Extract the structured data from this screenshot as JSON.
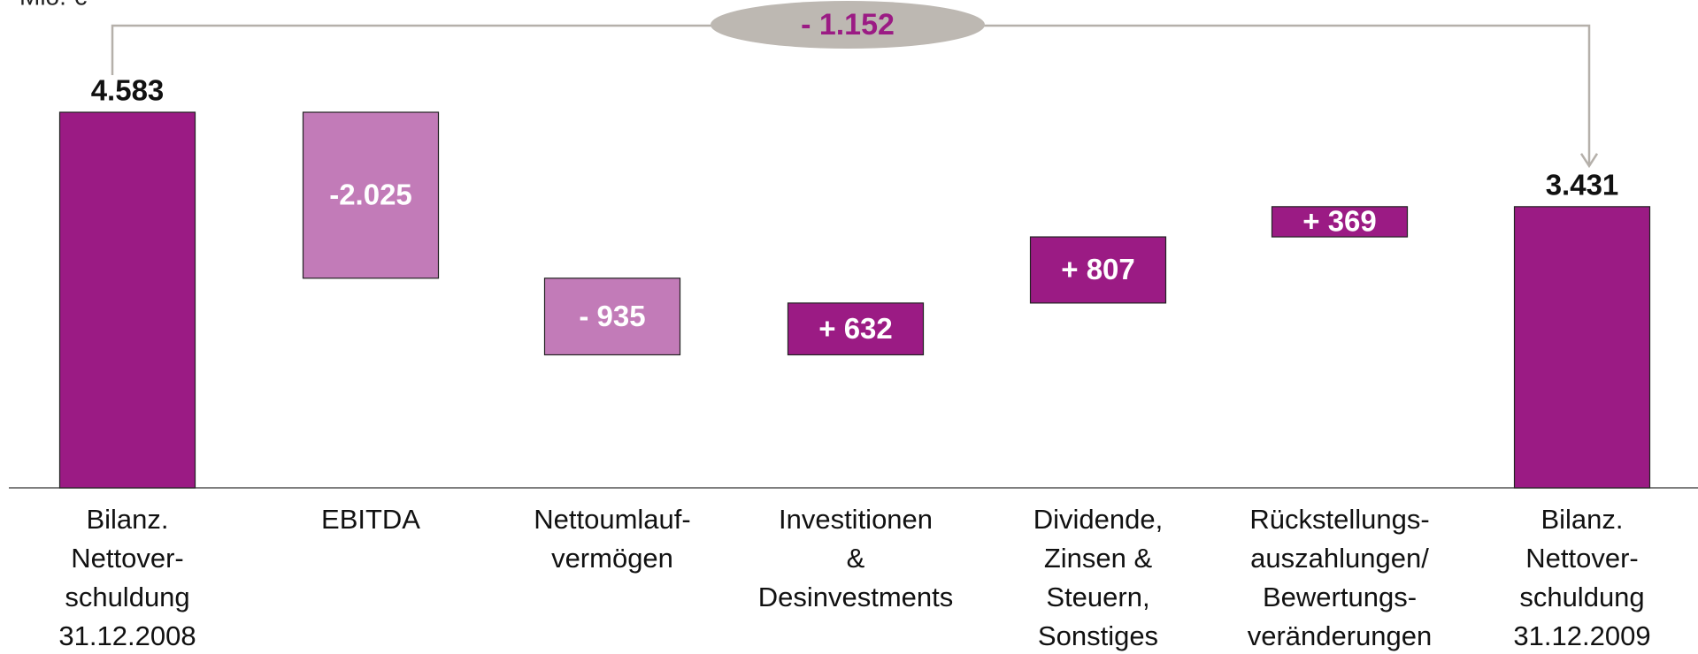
{
  "chart_data": {
    "type": "waterfall",
    "unit_label": "Mio. €",
    "categories": [
      "Bilanz.\nNettover-\nschuldung\n31.12.2008",
      "EBITDA",
      "Nettoumlauf-\nvermögen",
      "Investitionen\n&\nDesinvestments",
      "Dividende,\nZinsen &\nSteuern,\nSonstiges",
      "Rückstellungs-\nauszahlungen/\nBewertungs-\nveränderungen",
      "Bilanz.\nNettover-\nschuldung\n31.12.2009"
    ],
    "values": [
      4583,
      -2025,
      -935,
      632,
      807,
      369,
      3431
    ],
    "value_labels": [
      "4.583",
      "-2.025",
      "- 935",
      "+ 632",
      "+ 807",
      "+ 369",
      "3.431"
    ],
    "measures": [
      "absolute",
      "relative",
      "relative",
      "relative",
      "relative",
      "relative",
      "absolute"
    ],
    "total_color": "#9b1b84",
    "increase_color": "#9b1b84",
    "decrease_color": "#c27bb8",
    "annotation": {
      "value": -1152,
      "label": "- 1.152"
    }
  }
}
